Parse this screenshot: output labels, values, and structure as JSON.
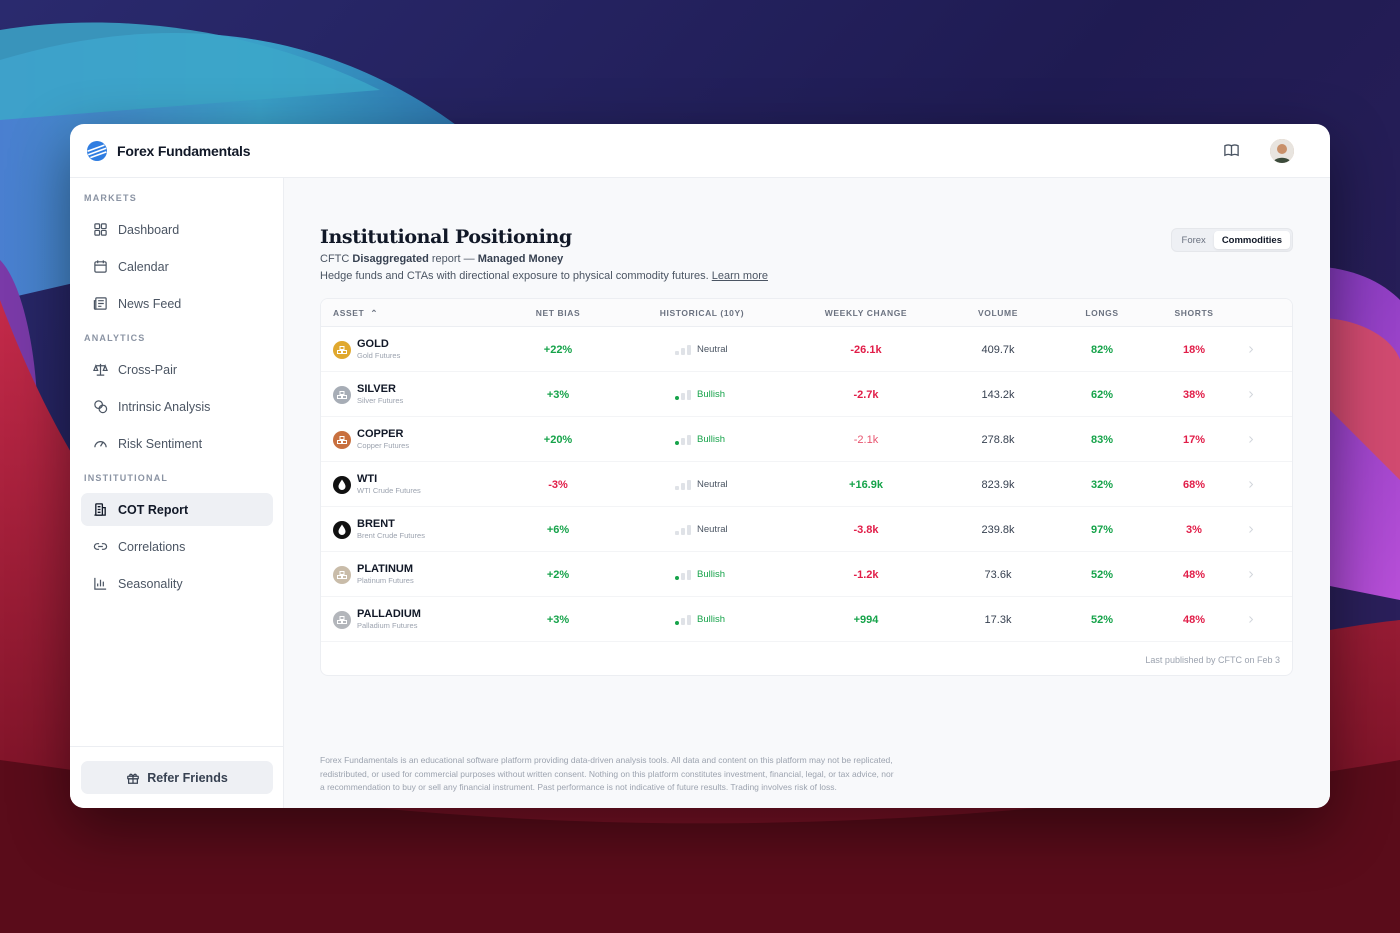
{
  "app": {
    "name": "Forex Fundamentals"
  },
  "sidebar": {
    "sections": [
      {
        "title": "MARKETS",
        "items": [
          {
            "label": "Dashboard",
            "icon": "grid-icon"
          },
          {
            "label": "Calendar",
            "icon": "calendar-icon"
          },
          {
            "label": "News Feed",
            "icon": "newspaper-icon"
          }
        ]
      },
      {
        "title": "ANALYTICS",
        "items": [
          {
            "label": "Cross-Pair",
            "icon": "scale-icon"
          },
          {
            "label": "Intrinsic Analysis",
            "icon": "coins-icon"
          },
          {
            "label": "Risk Sentiment",
            "icon": "gauge-icon"
          }
        ]
      },
      {
        "title": "INSTITUTIONAL",
        "items": [
          {
            "label": "COT Report",
            "icon": "building-icon",
            "active": true
          },
          {
            "label": "Correlations",
            "icon": "link-icon"
          },
          {
            "label": "Seasonality",
            "icon": "bar-chart-icon"
          }
        ]
      }
    ],
    "refer_label": "Refer Friends"
  },
  "main": {
    "title": "Institutional Positioning",
    "subtitle": {
      "prefix": "CFTC",
      "bold1": "Disaggregated",
      "middle": "report —",
      "bold2": "Managed Money"
    },
    "description": "Hedge funds and CTAs with directional exposure to physical commodity futures.",
    "learn_more": "Learn more",
    "toggle": {
      "options": [
        "Forex",
        "Commodities"
      ],
      "selected": "Commodities"
    },
    "table": {
      "columns": [
        "ASSET",
        "NET BIAS",
        "HISTORICAL (10Y)",
        "WEEKLY CHANGE",
        "VOLUME",
        "LONGS",
        "SHORTS"
      ],
      "rows": [
        {
          "symbol": "GOLD",
          "name": "Gold Futures",
          "net_bias": "+22%",
          "historical": "Neutral",
          "weekly_change": "-26.1k",
          "volume": "409.7k",
          "longs": "82%",
          "shorts": "18%",
          "icon_color": "#e0a82e"
        },
        {
          "symbol": "SILVER",
          "name": "Silver Futures",
          "net_bias": "+3%",
          "historical": "Bullish",
          "weekly_change": "-2.7k",
          "volume": "143.2k",
          "longs": "62%",
          "shorts": "38%",
          "icon_color": "#a7adb6"
        },
        {
          "symbol": "COPPER",
          "name": "Copper Futures",
          "net_bias": "+20%",
          "historical": "Bullish",
          "weekly_change": "-2.1k",
          "volume": "278.8k",
          "longs": "83%",
          "shorts": "17%",
          "icon_color": "#c8703f"
        },
        {
          "symbol": "WTI",
          "name": "WTI Crude Futures",
          "net_bias": "-3%",
          "historical": "Neutral",
          "weekly_change": "+16.9k",
          "volume": "823.9k",
          "longs": "32%",
          "shorts": "68%",
          "icon_color": "#111111"
        },
        {
          "symbol": "BRENT",
          "name": "Brent Crude Futures",
          "net_bias": "+6%",
          "historical": "Neutral",
          "weekly_change": "-3.8k",
          "volume": "239.8k",
          "longs": "97%",
          "shorts": "3%",
          "icon_color": "#111111"
        },
        {
          "symbol": "PLATINUM",
          "name": "Platinum Futures",
          "net_bias": "+2%",
          "historical": "Bullish",
          "weekly_change": "-1.2k",
          "volume": "73.6k",
          "longs": "52%",
          "shorts": "48%",
          "icon_color": "#c9bca9"
        },
        {
          "symbol": "PALLADIUM",
          "name": "Palladium Futures",
          "net_bias": "+3%",
          "historical": "Bullish",
          "weekly_change": "+994",
          "volume": "17.3k",
          "longs": "52%",
          "shorts": "48%",
          "icon_color": "#b3b6bb"
        }
      ],
      "footer": "Last published by CFTC on Feb 3"
    },
    "disclaimer": "Forex Fundamentals is an educational software platform providing data-driven analysis tools. All data and content on this platform may not be replicated, redistributed, or used for commercial purposes without written consent. Nothing on this platform constitutes investment, financial, legal, or tax advice, nor a recommendation to buy or sell any financial instrument. Past performance is not indicative of future results. Trading involves risk of loss."
  },
  "colors": {
    "positive": "#16a34a",
    "negative": "#e11d48",
    "active_bg": "#eef0f4"
  }
}
